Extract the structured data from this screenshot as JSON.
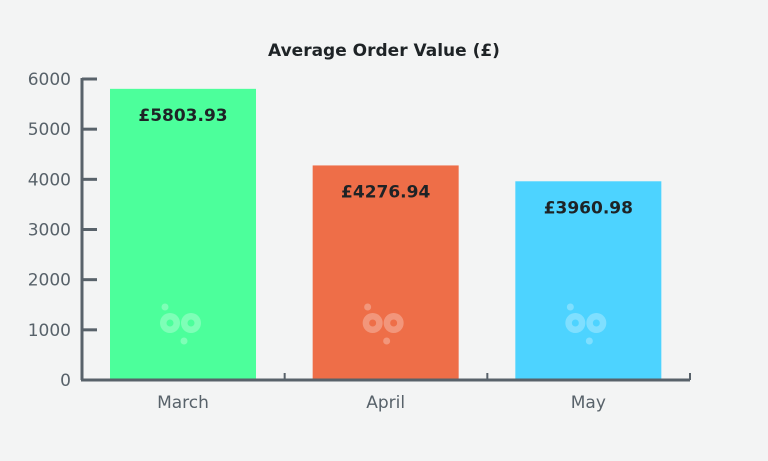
{
  "chart_data": {
    "type": "bar",
    "title": "Average Order Value (£)",
    "xlabel": "",
    "ylabel": "",
    "categories": [
      "March",
      "April",
      "May"
    ],
    "values": [
      5803.93,
      4276.94,
      3960.98
    ],
    "data_labels": [
      "£5803.93",
      "£4276.94",
      "£3960.98"
    ],
    "colors": [
      "#4cff9b",
      "#ee6e48",
      "#4dd3ff"
    ],
    "ylim": [
      0,
      6000
    ],
    "yticks": [
      0,
      1000,
      2000,
      3000,
      4000,
      5000,
      6000
    ],
    "ytick_labels": [
      "0",
      "1000",
      "2000",
      "3000",
      "4000",
      "5000",
      "6000"
    ],
    "grid": false,
    "axis_color": "#58626a",
    "text_color": "#58626a",
    "label_color": "#1e2326"
  }
}
